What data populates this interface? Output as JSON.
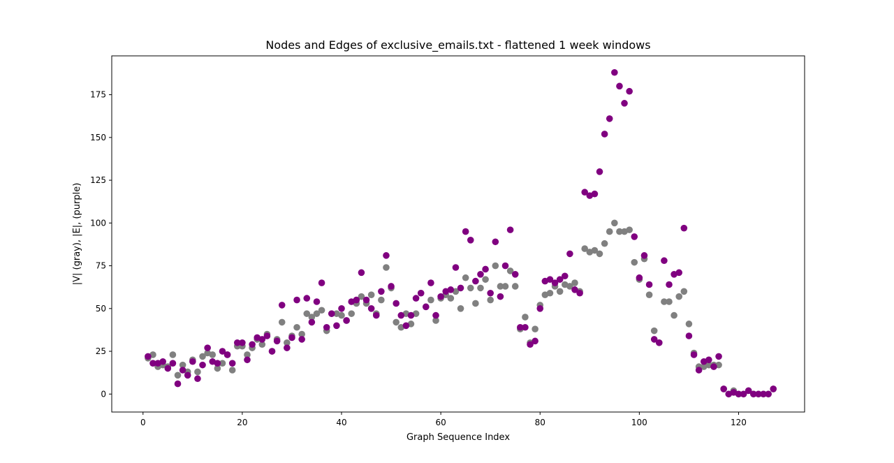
{
  "chart_data": {
    "type": "scatter",
    "title": "Nodes and Edges of exclusive_emails.txt - flattened 1 week windows",
    "xlabel": "Graph Sequence Index",
    "ylabel": "|V| (gray), |E|, (purple)",
    "xlim": [
      -6.3,
      133.3
    ],
    "ylim": [
      -10.5,
      197.7
    ],
    "xticks": [
      0,
      20,
      40,
      60,
      80,
      100,
      120
    ],
    "yticks": [
      0,
      25,
      50,
      75,
      100,
      125,
      150,
      175
    ],
    "grid": false,
    "series": [
      {
        "color": "#808080",
        "points": [
          [
            1,
            21
          ],
          [
            2,
            23
          ],
          [
            3,
            16
          ],
          [
            4,
            17
          ],
          [
            5,
            16
          ],
          [
            6,
            23
          ],
          [
            7,
            11
          ],
          [
            8,
            17
          ],
          [
            9,
            13
          ],
          [
            10,
            20
          ],
          [
            11,
            13
          ],
          [
            12,
            22
          ],
          [
            13,
            24
          ],
          [
            14,
            23
          ],
          [
            15,
            15
          ],
          [
            16,
            18
          ],
          [
            17,
            23
          ],
          [
            18,
            14
          ],
          [
            19,
            28
          ],
          [
            20,
            28
          ],
          [
            21,
            23
          ],
          [
            22,
            27
          ],
          [
            23,
            32
          ],
          [
            24,
            29
          ],
          [
            25,
            35
          ],
          [
            26,
            25
          ],
          [
            27,
            32
          ],
          [
            28,
            42
          ],
          [
            29,
            30
          ],
          [
            30,
            34
          ],
          [
            31,
            39
          ],
          [
            32,
            35
          ],
          [
            33,
            47
          ],
          [
            34,
            45
          ],
          [
            35,
            47
          ],
          [
            36,
            49
          ],
          [
            37,
            37
          ],
          [
            38,
            47
          ],
          [
            39,
            47
          ],
          [
            40,
            46
          ],
          [
            41,
            43
          ],
          [
            42,
            47
          ],
          [
            43,
            53
          ],
          [
            44,
            57
          ],
          [
            45,
            53
          ],
          [
            46,
            58
          ],
          [
            47,
            47
          ],
          [
            48,
            55
          ],
          [
            49,
            74
          ],
          [
            50,
            62
          ],
          [
            51,
            42
          ],
          [
            52,
            39
          ],
          [
            53,
            47
          ],
          [
            54,
            41
          ],
          [
            55,
            47
          ],
          [
            56,
            59
          ],
          [
            57,
            51
          ],
          [
            58,
            55
          ],
          [
            59,
            43
          ],
          [
            60,
            56
          ],
          [
            61,
            58
          ],
          [
            62,
            56
          ],
          [
            63,
            60
          ],
          [
            64,
            50
          ],
          [
            65,
            68
          ],
          [
            66,
            62
          ],
          [
            67,
            53
          ],
          [
            68,
            62
          ],
          [
            69,
            67
          ],
          [
            70,
            55
          ],
          [
            71,
            75
          ],
          [
            72,
            63
          ],
          [
            73,
            63
          ],
          [
            74,
            72
          ],
          [
            75,
            63
          ],
          [
            76,
            38
          ],
          [
            77,
            45
          ],
          [
            78,
            30
          ],
          [
            79,
            38
          ],
          [
            80,
            52
          ],
          [
            81,
            58
          ],
          [
            82,
            59
          ],
          [
            83,
            63
          ],
          [
            84,
            60
          ],
          [
            85,
            64
          ],
          [
            86,
            63
          ],
          [
            87,
            65
          ],
          [
            88,
            60
          ],
          [
            89,
            85
          ],
          [
            90,
            83
          ],
          [
            91,
            84
          ],
          [
            92,
            82
          ],
          [
            93,
            88
          ],
          [
            94,
            95
          ],
          [
            95,
            100
          ],
          [
            96,
            95
          ],
          [
            97,
            95
          ],
          [
            98,
            96
          ],
          [
            99,
            77
          ],
          [
            100,
            67
          ],
          [
            101,
            79
          ],
          [
            102,
            58
          ],
          [
            103,
            37
          ],
          [
            104,
            30
          ],
          [
            105,
            54
          ],
          [
            106,
            54
          ],
          [
            107,
            46
          ],
          [
            108,
            57
          ],
          [
            109,
            60
          ],
          [
            110,
            41
          ],
          [
            111,
            24
          ],
          [
            112,
            16
          ],
          [
            113,
            16
          ],
          [
            114,
            17
          ],
          [
            115,
            17
          ],
          [
            116,
            17
          ],
          [
            117,
            3
          ],
          [
            118,
            0
          ],
          [
            119,
            2
          ],
          [
            120,
            0
          ],
          [
            121,
            0
          ],
          [
            122,
            2
          ],
          [
            123,
            0
          ],
          [
            124,
            0
          ],
          [
            125,
            0
          ],
          [
            126,
            0
          ],
          [
            127,
            3
          ]
        ]
      },
      {
        "color": "#800080",
        "points": [
          [
            1,
            22
          ],
          [
            2,
            18
          ],
          [
            3,
            18
          ],
          [
            4,
            19
          ],
          [
            5,
            15
          ],
          [
            6,
            18
          ],
          [
            7,
            6
          ],
          [
            8,
            14
          ],
          [
            9,
            11
          ],
          [
            10,
            19
          ],
          [
            11,
            9
          ],
          [
            12,
            17
          ],
          [
            13,
            27
          ],
          [
            14,
            19
          ],
          [
            15,
            18
          ],
          [
            16,
            25
          ],
          [
            17,
            23
          ],
          [
            18,
            18
          ],
          [
            19,
            30
          ],
          [
            20,
            30
          ],
          [
            21,
            20
          ],
          [
            22,
            29
          ],
          [
            23,
            33
          ],
          [
            24,
            32
          ],
          [
            25,
            34
          ],
          [
            26,
            25
          ],
          [
            27,
            31
          ],
          [
            28,
            52
          ],
          [
            29,
            27
          ],
          [
            30,
            33
          ],
          [
            31,
            55
          ],
          [
            32,
            32
          ],
          [
            33,
            56
          ],
          [
            34,
            42
          ],
          [
            35,
            54
          ],
          [
            36,
            65
          ],
          [
            37,
            39
          ],
          [
            38,
            47
          ],
          [
            39,
            40
          ],
          [
            40,
            50
          ],
          [
            41,
            43
          ],
          [
            42,
            54
          ],
          [
            43,
            55
          ],
          [
            44,
            71
          ],
          [
            45,
            55
          ],
          [
            46,
            50
          ],
          [
            47,
            46
          ],
          [
            48,
            60
          ],
          [
            49,
            81
          ],
          [
            50,
            63
          ],
          [
            51,
            53
          ],
          [
            52,
            46
          ],
          [
            53,
            40
          ],
          [
            54,
            46
          ],
          [
            55,
            56
          ],
          [
            56,
            59
          ],
          [
            57,
            51
          ],
          [
            58,
            65
          ],
          [
            59,
            46
          ],
          [
            60,
            57
          ],
          [
            61,
            60
          ],
          [
            62,
            61
          ],
          [
            63,
            74
          ],
          [
            64,
            62
          ],
          [
            65,
            95
          ],
          [
            66,
            90
          ],
          [
            67,
            66
          ],
          [
            68,
            70
          ],
          [
            69,
            73
          ],
          [
            70,
            59
          ],
          [
            71,
            89
          ],
          [
            72,
            57
          ],
          [
            73,
            75
          ],
          [
            74,
            96
          ],
          [
            75,
            70
          ],
          [
            76,
            39
          ],
          [
            77,
            39
          ],
          [
            78,
            29
          ],
          [
            79,
            31
          ],
          [
            80,
            50
          ],
          [
            81,
            66
          ],
          [
            82,
            67
          ],
          [
            83,
            65
          ],
          [
            84,
            67
          ],
          [
            85,
            69
          ],
          [
            86,
            82
          ],
          [
            87,
            61
          ],
          [
            88,
            59
          ],
          [
            89,
            118
          ],
          [
            90,
            116
          ],
          [
            91,
            117
          ],
          [
            92,
            130
          ],
          [
            93,
            152
          ],
          [
            94,
            161
          ],
          [
            95,
            188
          ],
          [
            96,
            180
          ],
          [
            97,
            170
          ],
          [
            98,
            177
          ],
          [
            99,
            92
          ],
          [
            100,
            68
          ],
          [
            101,
            81
          ],
          [
            102,
            64
          ],
          [
            103,
            32
          ],
          [
            104,
            30
          ],
          [
            105,
            78
          ],
          [
            106,
            64
          ],
          [
            107,
            70
          ],
          [
            108,
            71
          ],
          [
            109,
            97
          ],
          [
            110,
            34
          ],
          [
            111,
            23
          ],
          [
            112,
            14
          ],
          [
            113,
            19
          ],
          [
            114,
            20
          ],
          [
            115,
            16
          ],
          [
            116,
            22
          ],
          [
            117,
            3
          ],
          [
            118,
            0
          ],
          [
            119,
            1
          ],
          [
            120,
            0
          ],
          [
            121,
            0
          ],
          [
            122,
            2
          ],
          [
            123,
            0
          ],
          [
            124,
            0
          ],
          [
            125,
            0
          ],
          [
            126,
            0
          ],
          [
            127,
            3
          ]
        ]
      }
    ]
  }
}
